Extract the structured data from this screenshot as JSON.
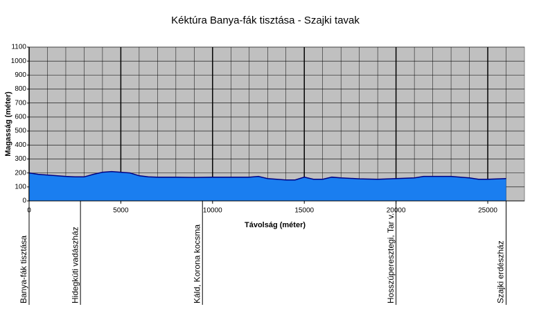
{
  "chart_data": {
    "type": "area",
    "title": "Kéktúra Banya-fák tisztása - Szajki tavak",
    "x_label": "Távolság (méter)",
    "y_label": "Magasság (méter)",
    "x": [
      0,
      500,
      1000,
      1500,
      2000,
      2500,
      3000,
      3500,
      4000,
      4500,
      5000,
      5500,
      6000,
      6500,
      7000,
      8000,
      9000,
      10000,
      11000,
      12000,
      12500,
      13000,
      14000,
      14500,
      15000,
      15500,
      16000,
      16500,
      17000,
      18000,
      19000,
      20000,
      21000,
      21500,
      22000,
      23000,
      24000,
      24500,
      25000,
      26000
    ],
    "series": [
      {
        "name": "Magasság",
        "color": "#1a7ef0",
        "values": [
          200,
          190,
          185,
          180,
          175,
          172,
          172,
          190,
          205,
          210,
          205,
          200,
          180,
          172,
          170,
          170,
          168,
          170,
          170,
          170,
          175,
          160,
          150,
          150,
          170,
          155,
          155,
          170,
          165,
          158,
          155,
          160,
          165,
          175,
          175,
          175,
          165,
          155,
          155,
          160
        ]
      }
    ],
    "xlim": [
      0,
      27000
    ],
    "ylim": [
      0,
      1100
    ],
    "xticks": [
      0,
      5000,
      10000,
      15000,
      20000,
      25000
    ],
    "yticks": [
      0,
      100,
      200,
      300,
      400,
      500,
      600,
      700,
      800,
      900,
      1000,
      1100
    ],
    "grid": true,
    "stations": [
      {
        "name": "Banya-fák tisztása",
        "x": 0
      },
      {
        "name": "Hidegkúti vadászház",
        "x": 2800
      },
      {
        "name": "Káld, Korona kocsma",
        "x": 9450
      },
      {
        "name": "Hosszúperesztegi, Tar v.",
        "x": 20000
      },
      {
        "name": "Szajki erdészház",
        "x": 26000
      }
    ]
  }
}
